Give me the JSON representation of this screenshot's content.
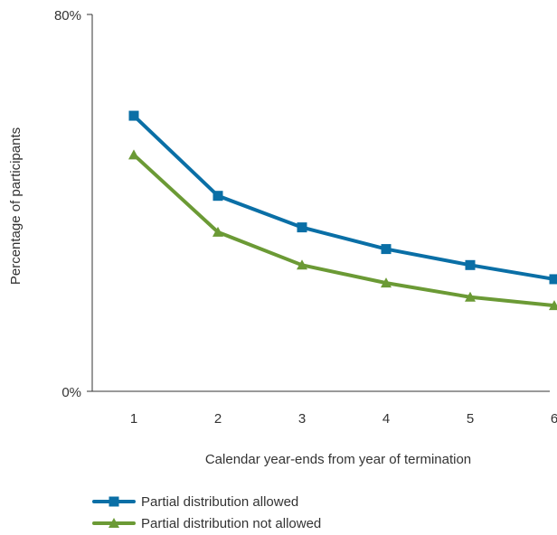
{
  "chart_data": {
    "type": "line",
    "title": "",
    "xlabel": "Calendar year-ends from year of termination",
    "ylabel": "Percentage of participants",
    "x": [
      1,
      2,
      3,
      4,
      5,
      6
    ],
    "x_tick_labels": [
      "1",
      "2",
      "3",
      "4",
      "5",
      "6"
    ],
    "y_tick_labels": [
      "0%",
      "80%"
    ],
    "ylim": [
      0,
      80
    ],
    "grid": false,
    "legend_position": "bottom-left",
    "series": [
      {
        "name": "Partial distribution allowed",
        "values": [
          58.5,
          41.5,
          34.8,
          30.2,
          26.8,
          23.8
        ],
        "color": "#0a6fa6",
        "marker": "square"
      },
      {
        "name": "Partial distribution not allowed",
        "values": [
          50.2,
          33.8,
          26.8,
          23.0,
          20.0,
          18.2
        ],
        "color": "#6b9a35",
        "marker": "triangle"
      }
    ]
  }
}
